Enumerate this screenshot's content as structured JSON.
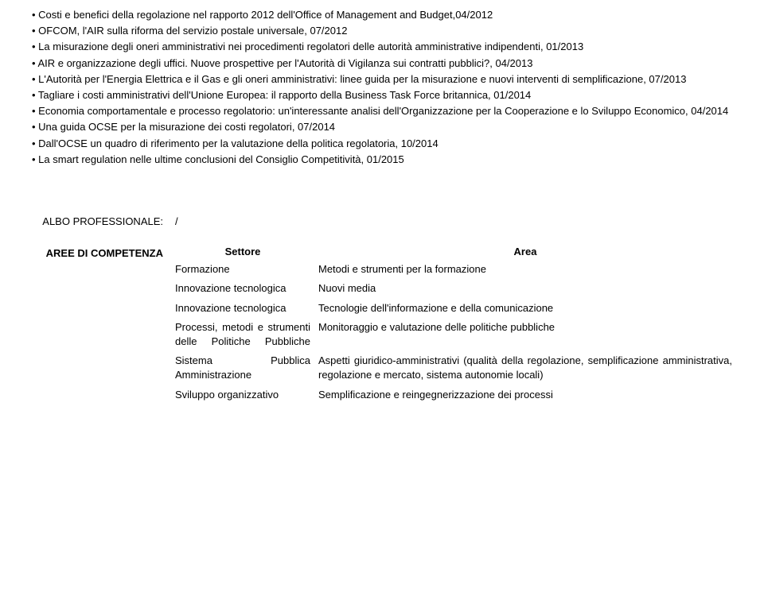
{
  "bullets": [
    "Costi e benefici della regolazione nel rapporto 2012 dell'Office of Management and Budget,04/2012",
    "OFCOM, l'AIR sulla riforma del servizio postale universale, 07/2012",
    "La misurazione degli oneri amministrativi nei procedimenti regolatori delle autorità amministrative indipendenti, 01/2013",
    "AIR e organizzazione degli uffici. Nuove prospettive per l'Autorità di Vigilanza sui contratti pubblici?, 04/2013",
    "L'Autorità per l'Energia Elettrica e il Gas e gli oneri amministrativi: linee guida per la misurazione e nuovi interventi di semplificazione, 07/2013",
    "Tagliare i costi amministrativi dell'Unione Europea: il rapporto della Business Task Force britannica, 01/2014",
    "Economia comportamentale e processo regolatorio: un'interessante analisi dell'Organizzazione per la Cooperazione e lo Sviluppo Economico, 04/2014",
    "Una guida OCSE per la misurazione dei costi regolatori, 07/2014",
    "Dall'OCSE un quadro di riferimento per la valutazione della politica regolatoria, 10/2014",
    "La smart regulation nelle ultime conclusioni del Consiglio Competitività, 01/2015"
  ],
  "albo_label": "ALBO PROFESSIONALE:",
  "albo_value": "/",
  "aree_label": "AREE DI COMPETENZA",
  "table": {
    "header_settore": "Settore",
    "header_area": "Area",
    "rows": [
      {
        "settore": "Formazione",
        "area": "Metodi e strumenti per la formazione"
      },
      {
        "settore": "Innovazione tecnologica",
        "area": "Nuovi media"
      },
      {
        "settore": "Innovazione tecnologica",
        "area": "Tecnologie dell'informazione e della comunicazione"
      },
      {
        "settore": "Processi, metodi e strumenti delle Politiche Pubbliche",
        "area": "Monitoraggio e valutazione delle politiche pubbliche"
      },
      {
        "settore": "Sistema Pubblica Amministrazione",
        "area": "Aspetti giuridico-amministrativi (qualità della regolazione, semplificazione amministrativa, regolazione e mercato, sistema autonomie locali)"
      },
      {
        "settore": "Sviluppo organizzativo",
        "area": "Semplificazione e reingegnerizzazione dei processi"
      }
    ]
  },
  "bullet_prefix": "• "
}
